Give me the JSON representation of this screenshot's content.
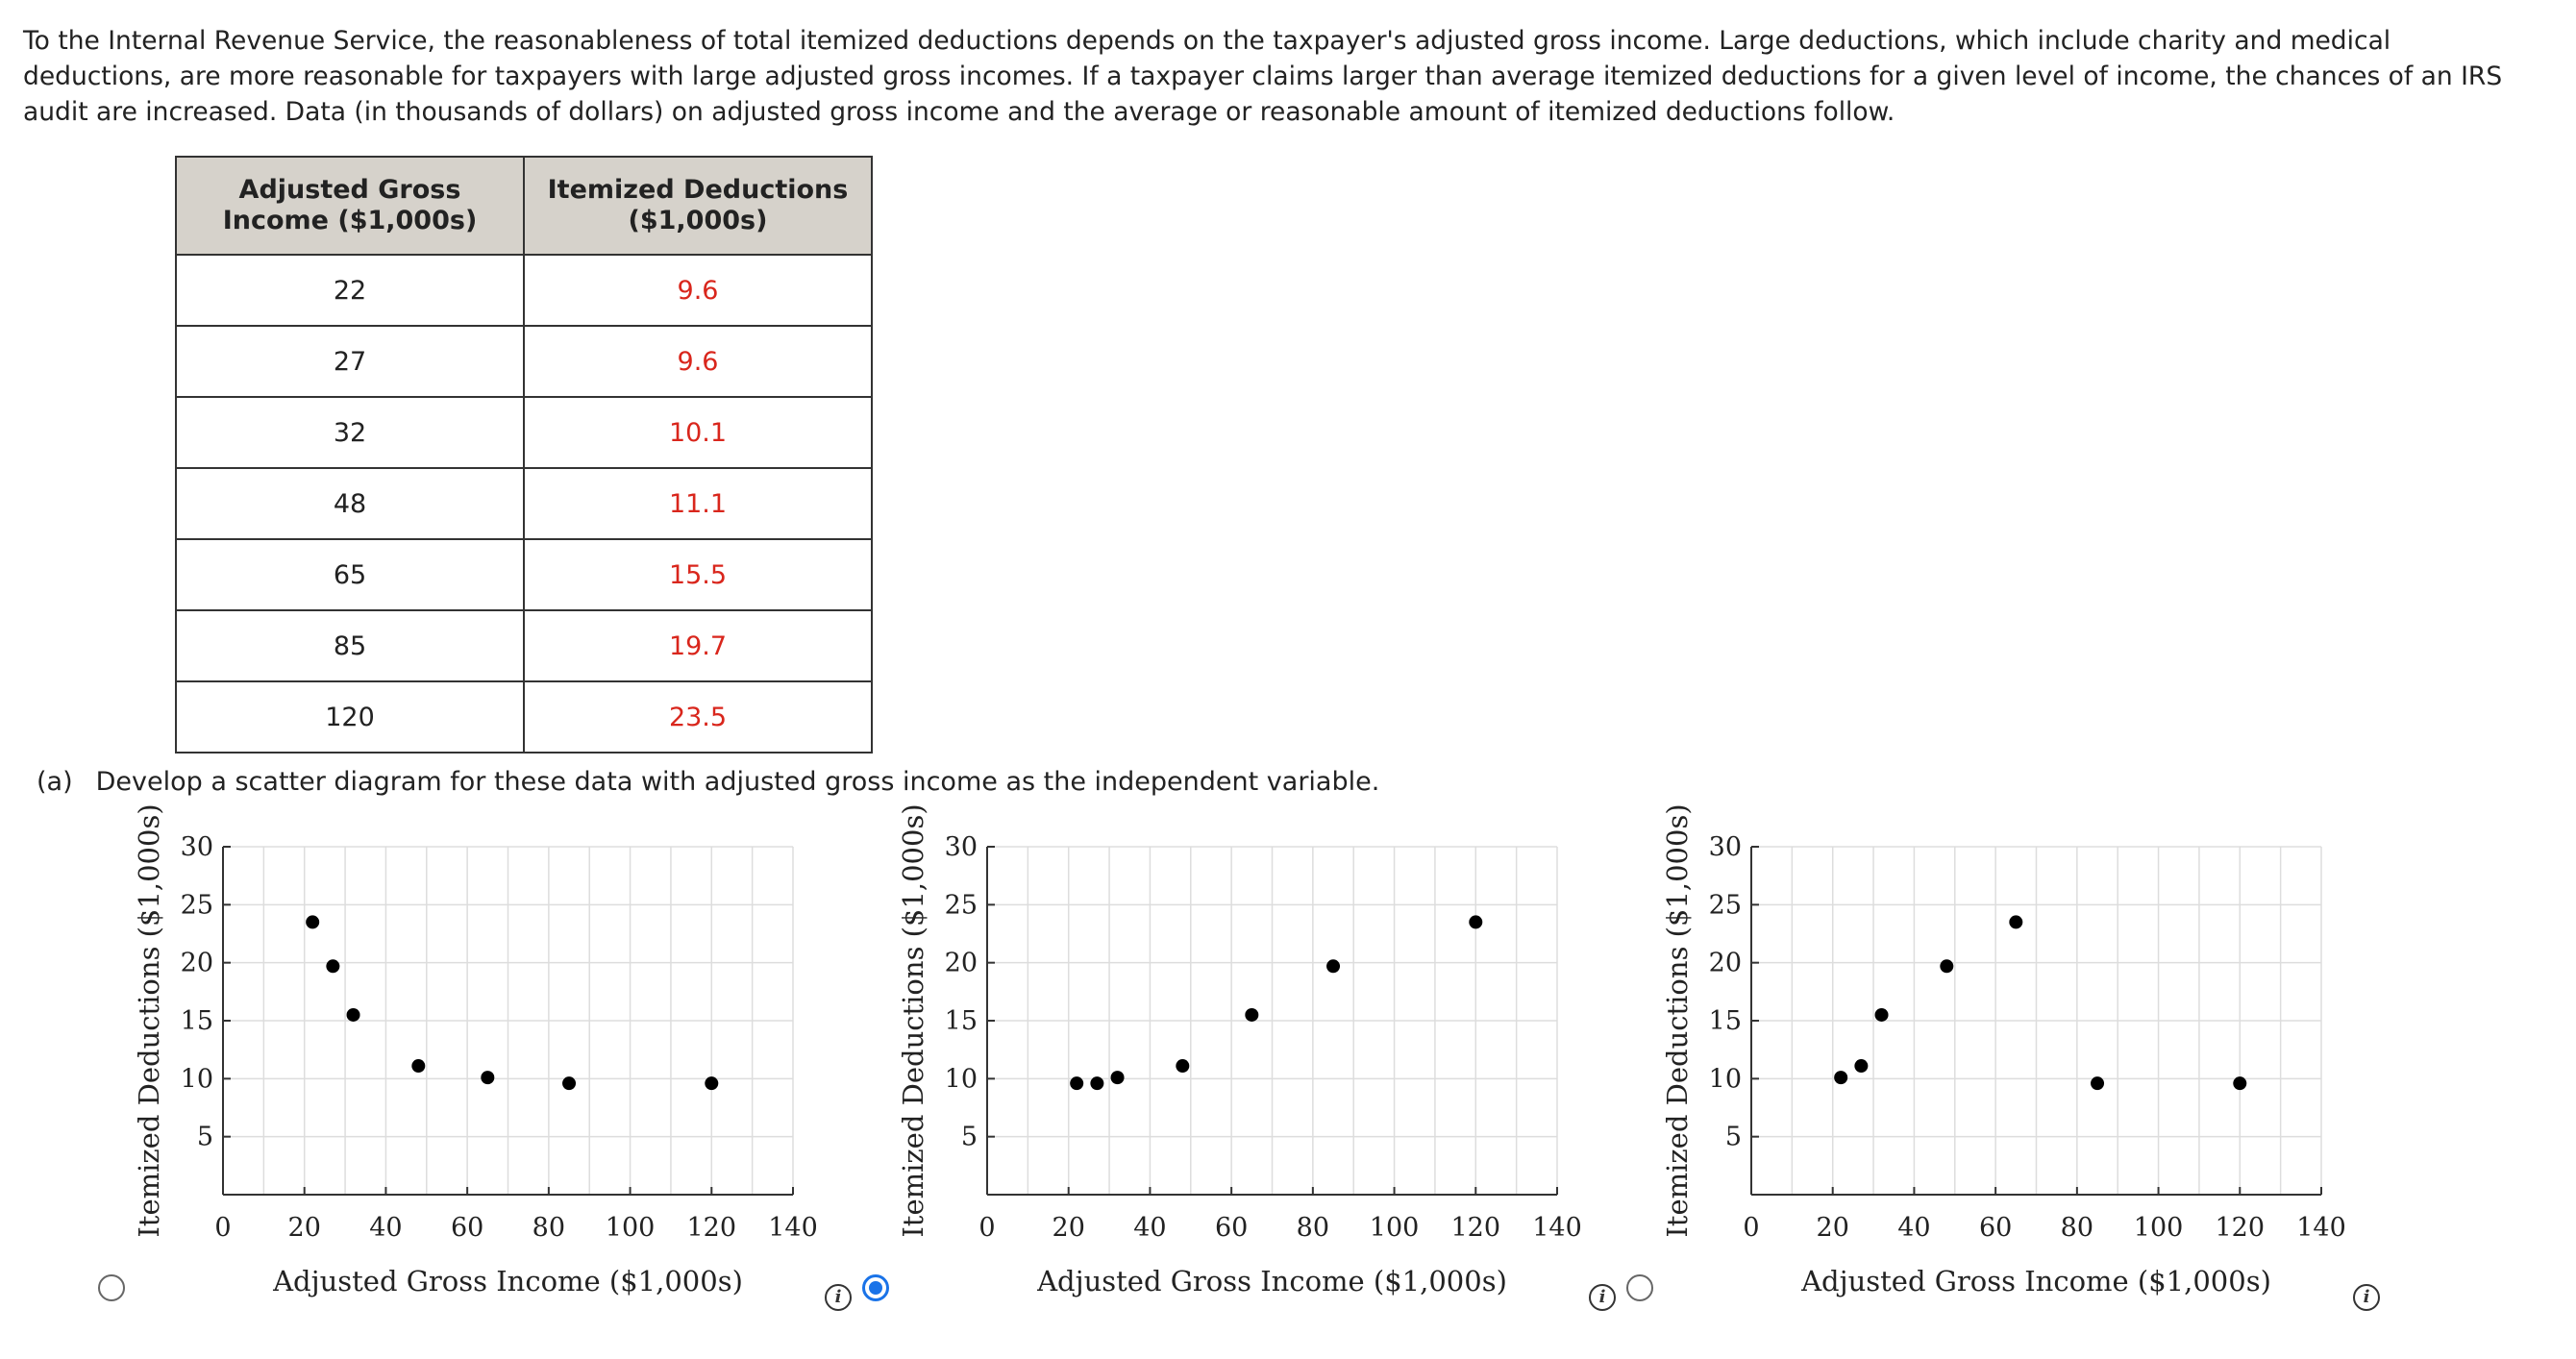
{
  "intro_text": "To the Internal Revenue Service, the reasonableness of total itemized deductions depends on the taxpayer's adjusted gross income. Large deductions, which include charity and medical deductions, are more reasonable for taxpayers with large adjusted gross incomes. If a taxpayer claims larger than average itemized deductions for a given level of income, the chances of an IRS audit are increased. Data (in thousands of dollars) on adjusted gross income and the average or reasonable amount of itemized deductions follow.",
  "table": {
    "headers": [
      "Adjusted Gross Income ($1,000s)",
      "Itemized Deductions ($1,000s)"
    ],
    "rows": [
      [
        "22",
        "9.6"
      ],
      [
        "27",
        "9.6"
      ],
      [
        "32",
        "10.1"
      ],
      [
        "48",
        "11.1"
      ],
      [
        "65",
        "15.5"
      ],
      [
        "85",
        "19.7"
      ],
      [
        "120",
        "23.5"
      ]
    ]
  },
  "question": {
    "label": "(a)",
    "text": "Develop a scatter diagram for these data with adjusted gross income as the independent variable."
  },
  "options": [
    {
      "selected": false,
      "info_glyph": "i"
    },
    {
      "selected": true,
      "info_glyph": "i"
    },
    {
      "selected": false,
      "info_glyph": "i"
    }
  ],
  "chart_data": [
    {
      "type": "scatter",
      "xlabel": "Adjusted Gross Income ($1,000s)",
      "ylabel": "Itemized Deductions ($1,000s)",
      "xlim": [
        0,
        140
      ],
      "ylim": [
        0,
        30
      ],
      "xticks": [
        0,
        20,
        40,
        60,
        80,
        100,
        120,
        140
      ],
      "yticks": [
        5,
        10,
        15,
        20,
        25,
        30
      ],
      "grid": true,
      "x": [
        22,
        27,
        32,
        48,
        65,
        85,
        120
      ],
      "y": [
        23.5,
        19.7,
        15.5,
        11.1,
        10.1,
        9.6,
        9.6
      ]
    },
    {
      "type": "scatter",
      "xlabel": "Adjusted Gross Income ($1,000s)",
      "ylabel": "Itemized Deductions ($1,000s)",
      "xlim": [
        0,
        140
      ],
      "ylim": [
        0,
        30
      ],
      "xticks": [
        0,
        20,
        40,
        60,
        80,
        100,
        120,
        140
      ],
      "yticks": [
        5,
        10,
        15,
        20,
        25,
        30
      ],
      "grid": true,
      "x": [
        22,
        27,
        32,
        48,
        65,
        85,
        120
      ],
      "y": [
        9.6,
        9.6,
        10.1,
        11.1,
        15.5,
        19.7,
        23.5
      ]
    },
    {
      "type": "scatter",
      "xlabel": "Adjusted Gross Income ($1,000s)",
      "ylabel": "Itemized Deductions ($1,000s)",
      "xlim": [
        0,
        140
      ],
      "ylim": [
        0,
        30
      ],
      "xticks": [
        0,
        20,
        40,
        60,
        80,
        100,
        120,
        140
      ],
      "yticks": [
        5,
        10,
        15,
        20,
        25,
        30
      ],
      "grid": true,
      "x": [
        22,
        27,
        32,
        48,
        65,
        85,
        120
      ],
      "y": [
        10.1,
        11.1,
        15.5,
        19.7,
        23.5,
        9.6,
        9.6
      ]
    }
  ]
}
